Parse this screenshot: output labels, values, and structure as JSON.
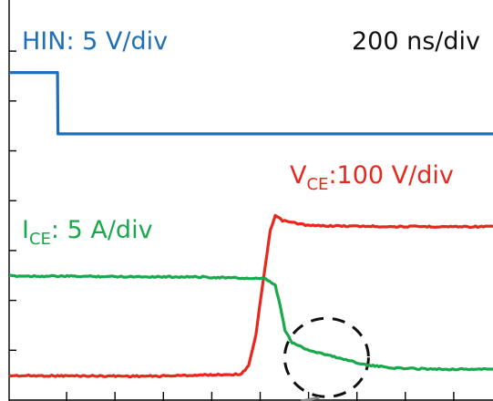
{
  "chart_data": {
    "type": "line",
    "title": "",
    "xlabel": "",
    "ylabel": "",
    "timebase_label": "200 ns/div",
    "x_unit": "ns",
    "x_range": [
      0,
      1000
    ],
    "grid": false,
    "annotations": [
      {
        "type": "dashed-ellipse",
        "marks": "IGBT current tail region after turn-off",
        "x_ns": 690,
        "level_div": 1.0
      }
    ],
    "series": [
      {
        "name": "HIN",
        "label": "HIN: 5 V/div",
        "scale": "5 V/div",
        "color": "#1f6fb8",
        "points": [
          [
            0,
            6.57
          ],
          [
            100,
            6.57
          ],
          [
            101,
            5.34
          ],
          [
            1000,
            5.34
          ]
        ]
      },
      {
        "name": "VCE",
        "label_main": "V",
        "label_sub": "CE",
        "label_rest": ":100 V/div",
        "scale": "100 V/div",
        "color": "#e8281e",
        "points": [
          [
            0,
            0.49
          ],
          [
            300,
            0.48
          ],
          [
            480,
            0.52
          ],
          [
            495,
            0.7
          ],
          [
            510,
            1.3
          ],
          [
            525,
            2.4
          ],
          [
            540,
            3.4
          ],
          [
            550,
            3.7
          ],
          [
            565,
            3.6
          ],
          [
            620,
            3.5
          ],
          [
            800,
            3.48
          ],
          [
            1000,
            3.48
          ]
        ]
      },
      {
        "name": "ICE",
        "label_main": "I",
        "label_sub": "CE",
        "label_rest": ": 5 A/div",
        "scale": "5 A/div",
        "color": "#1aa84c",
        "points": [
          [
            0,
            2.49
          ],
          [
            200,
            2.48
          ],
          [
            400,
            2.47
          ],
          [
            530,
            2.43
          ],
          [
            550,
            2.3
          ],
          [
            560,
            1.9
          ],
          [
            570,
            1.4
          ],
          [
            585,
            1.15
          ],
          [
            620,
            1.0
          ],
          [
            680,
            0.85
          ],
          [
            740,
            0.7
          ],
          [
            800,
            0.64
          ],
          [
            900,
            0.62
          ],
          [
            1000,
            0.62
          ]
        ]
      }
    ]
  }
}
